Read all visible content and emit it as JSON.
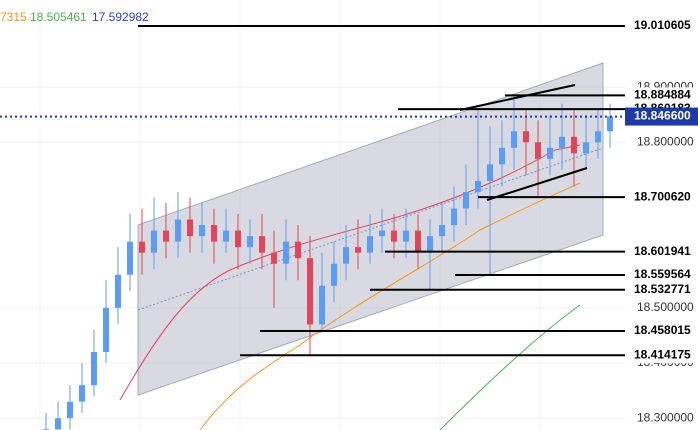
{
  "chart_data": {
    "type": "candlestick",
    "legend": [
      {
        "text": "7315",
        "color": "#f7931a"
      },
      {
        "text": "18.505461",
        "color": "#4caf50"
      },
      {
        "text": "17.592982",
        "color": "#2b3bd6"
      }
    ],
    "up_color": "#5b9cf6",
    "down_color": "#e0455a",
    "open": [
      18.26,
      18.28,
      18.3,
      18.33,
      18.36,
      18.42,
      18.5,
      18.56,
      18.62,
      18.6,
      18.64,
      18.62,
      18.66,
      18.63,
      18.65,
      18.62,
      18.64,
      18.61,
      18.63,
      18.6,
      18.58,
      18.62,
      18.59,
      18.47,
      18.54,
      18.58,
      18.61,
      18.6,
      18.63,
      18.64,
      18.62,
      18.64,
      18.6,
      18.63,
      18.65,
      18.68,
      18.71,
      18.73,
      18.76,
      18.79,
      18.82,
      18.8,
      18.77,
      18.79,
      18.81,
      18.78,
      18.8,
      18.82
    ],
    "high": [
      18.31,
      18.33,
      18.36,
      18.4,
      18.46,
      18.55,
      18.61,
      18.67,
      18.68,
      18.7,
      18.69,
      18.71,
      18.7,
      18.69,
      18.68,
      18.68,
      18.67,
      18.66,
      18.67,
      18.64,
      18.66,
      18.65,
      18.63,
      18.6,
      18.62,
      18.65,
      18.66,
      18.67,
      18.68,
      18.67,
      18.68,
      18.67,
      18.66,
      18.69,
      18.72,
      18.76,
      18.86,
      18.83,
      18.84,
      18.884884,
      18.86,
      18.84,
      18.85,
      18.87,
      18.86,
      18.85,
      18.86,
      18.87
    ],
    "low": [
      18.24,
      18.26,
      18.28,
      18.31,
      18.34,
      18.4,
      18.47,
      18.53,
      18.56,
      18.57,
      18.59,
      18.59,
      18.6,
      18.6,
      18.58,
      18.6,
      18.57,
      18.58,
      18.57,
      18.5,
      18.55,
      18.55,
      18.414175,
      18.458015,
      18.51,
      18.55,
      18.57,
      18.58,
      18.6,
      18.59,
      18.59,
      18.57,
      18.532771,
      18.601941,
      18.62,
      18.65,
      18.68,
      18.559564,
      18.72,
      18.75,
      18.74,
      18.70062,
      18.74,
      18.75,
      18.72,
      18.75,
      18.77,
      18.79
    ],
    "close": [
      18.28,
      18.3,
      18.33,
      18.36,
      18.42,
      18.5,
      18.56,
      18.62,
      18.6,
      18.64,
      18.62,
      18.66,
      18.63,
      18.65,
      18.62,
      18.64,
      18.61,
      18.63,
      18.6,
      18.58,
      18.62,
      18.59,
      18.47,
      18.54,
      18.58,
      18.61,
      18.6,
      18.63,
      18.64,
      18.62,
      18.64,
      18.6,
      18.63,
      18.65,
      18.68,
      18.71,
      18.73,
      18.76,
      18.79,
      18.82,
      18.8,
      18.77,
      18.79,
      18.81,
      18.78,
      18.8,
      18.82,
      18.8466
    ],
    "ylim": [
      18.2787,
      19.0578
    ],
    "yticks": [
      {
        "value": 18.3,
        "label": "18.300000"
      },
      {
        "value": 18.4,
        "label": "18.400000"
      },
      {
        "value": 18.5,
        "label": "18.500000"
      },
      {
        "value": 18.8,
        "label": "18.800000"
      },
      {
        "value": 18.9,
        "label": "18.900000"
      }
    ],
    "grid": true,
    "levels": [
      {
        "value": 19.010605,
        "label": "19.010605"
      },
      {
        "value": 18.884884,
        "label": "18.884884"
      },
      {
        "value": 18.860183,
        "label": "18.860183"
      },
      {
        "value": 18.70062,
        "label": "18.700620"
      },
      {
        "value": 18.601941,
        "label": "18.601941"
      },
      {
        "value": 18.559564,
        "label": "18.559564"
      },
      {
        "value": 18.532771,
        "label": "18.532771"
      },
      {
        "value": 18.458015,
        "label": "18.458015"
      },
      {
        "value": 18.414175,
        "label": "18.414175"
      }
    ],
    "current_price": {
      "value": 18.8466,
      "label": "18.846600",
      "color": "#1e3aa8"
    }
  }
}
